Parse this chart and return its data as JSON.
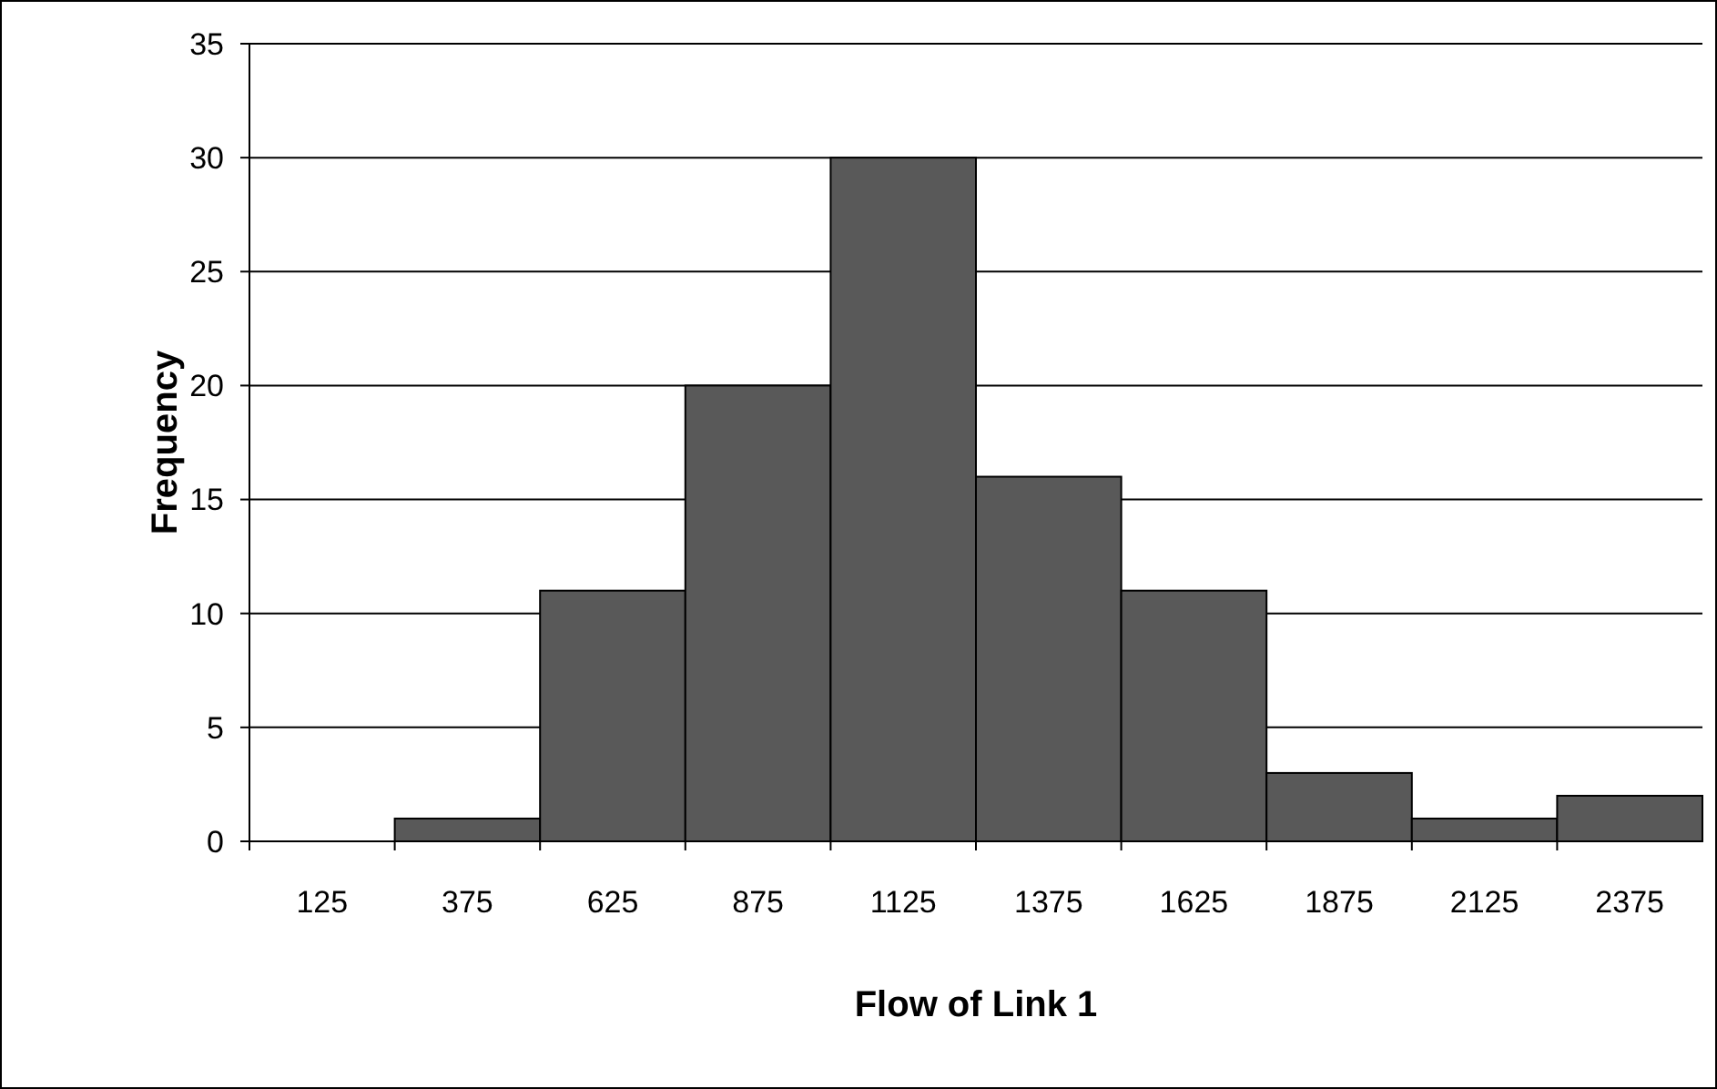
{
  "chart_data": {
    "type": "bar",
    "xlabel": "Flow of Link 1",
    "ylabel": "Frequency",
    "categories": [
      "125",
      "375",
      "625",
      "875",
      "1125",
      "1375",
      "1625",
      "1875",
      "2125",
      "2375"
    ],
    "values": [
      0,
      1,
      11,
      20,
      30,
      16,
      11,
      3,
      1,
      2
    ],
    "color": "#595959",
    "ylim": [
      0,
      35
    ],
    "yticks": [
      0,
      5,
      10,
      15,
      20,
      25,
      30,
      35
    ],
    "grid": "y"
  }
}
